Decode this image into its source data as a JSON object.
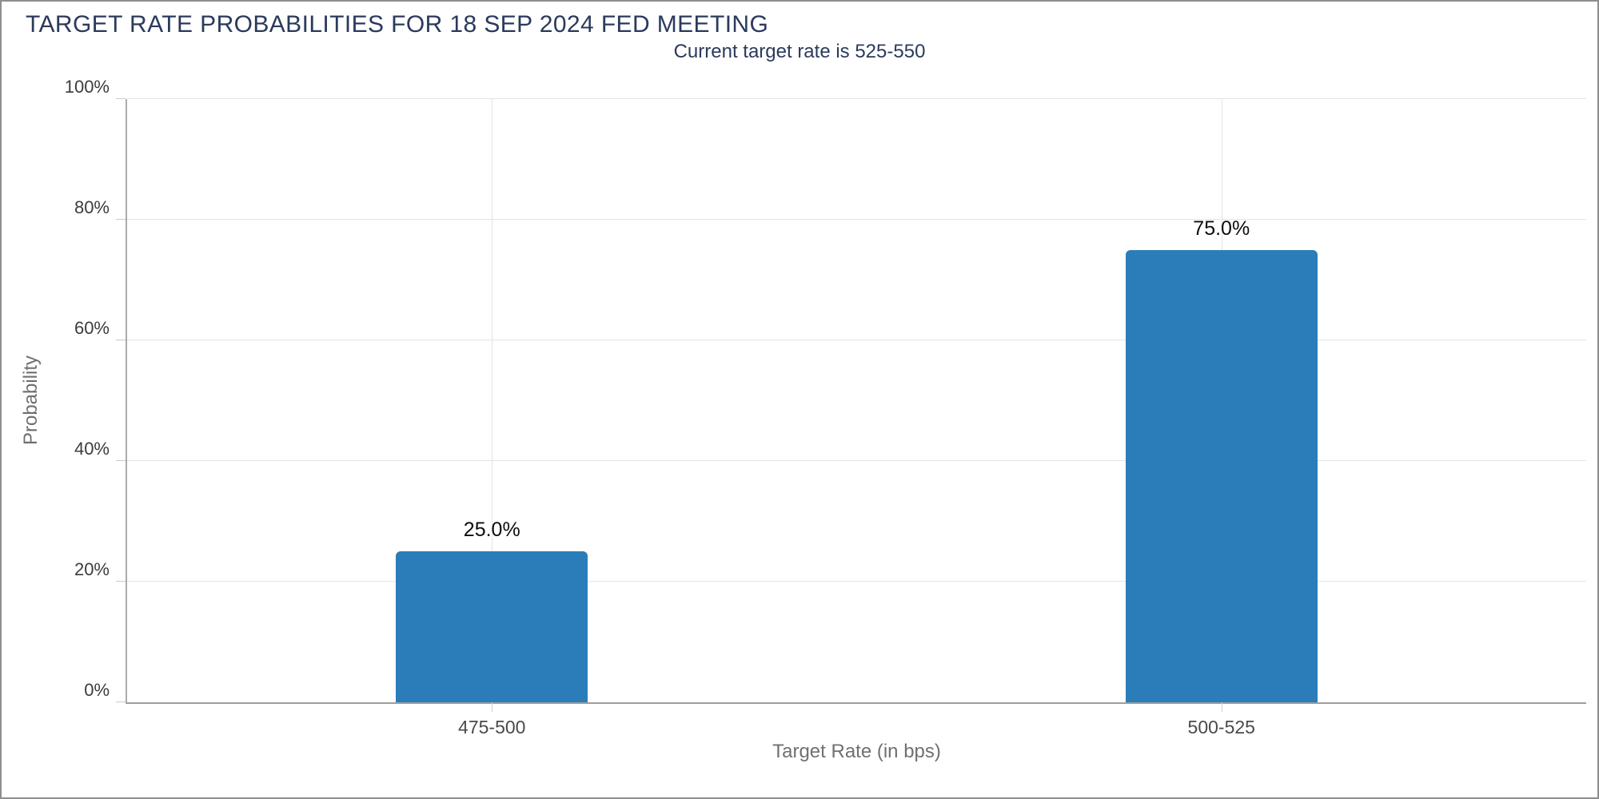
{
  "header": {
    "title": "TARGET RATE PROBABILITIES FOR 18 SEP 2024 FED MEETING",
    "subtitle": "Current target rate is 525-550"
  },
  "chart_data": {
    "type": "bar",
    "title": "TARGET RATE PROBABILITIES FOR 18 SEP 2024 FED MEETING",
    "subtitle": "Current target rate is 525-550",
    "categories": [
      "475-500",
      "500-525"
    ],
    "values": [
      25.0,
      75.0
    ],
    "value_labels": [
      "25.0%",
      "75.0%"
    ],
    "xlabel": "Target Rate (in bps)",
    "ylabel": "Probability",
    "ylim": [
      0,
      100
    ],
    "yticks": [
      0,
      20,
      40,
      60,
      80,
      100
    ],
    "ytick_labels": [
      "0%",
      "20%",
      "40%",
      "60%",
      "80%",
      "100%"
    ],
    "grid": true,
    "legend": "none",
    "bar_color": "#2a7db8"
  },
  "colors": {
    "title_text": "#2b3a5c",
    "bar_fill": "#2a7db8",
    "gridline": "#e4e4e4",
    "axis_line": "#9e9e9e",
    "tick_label": "#3c3c3c",
    "axis_title": "#707070",
    "panel_border": "#8e8e8e"
  }
}
